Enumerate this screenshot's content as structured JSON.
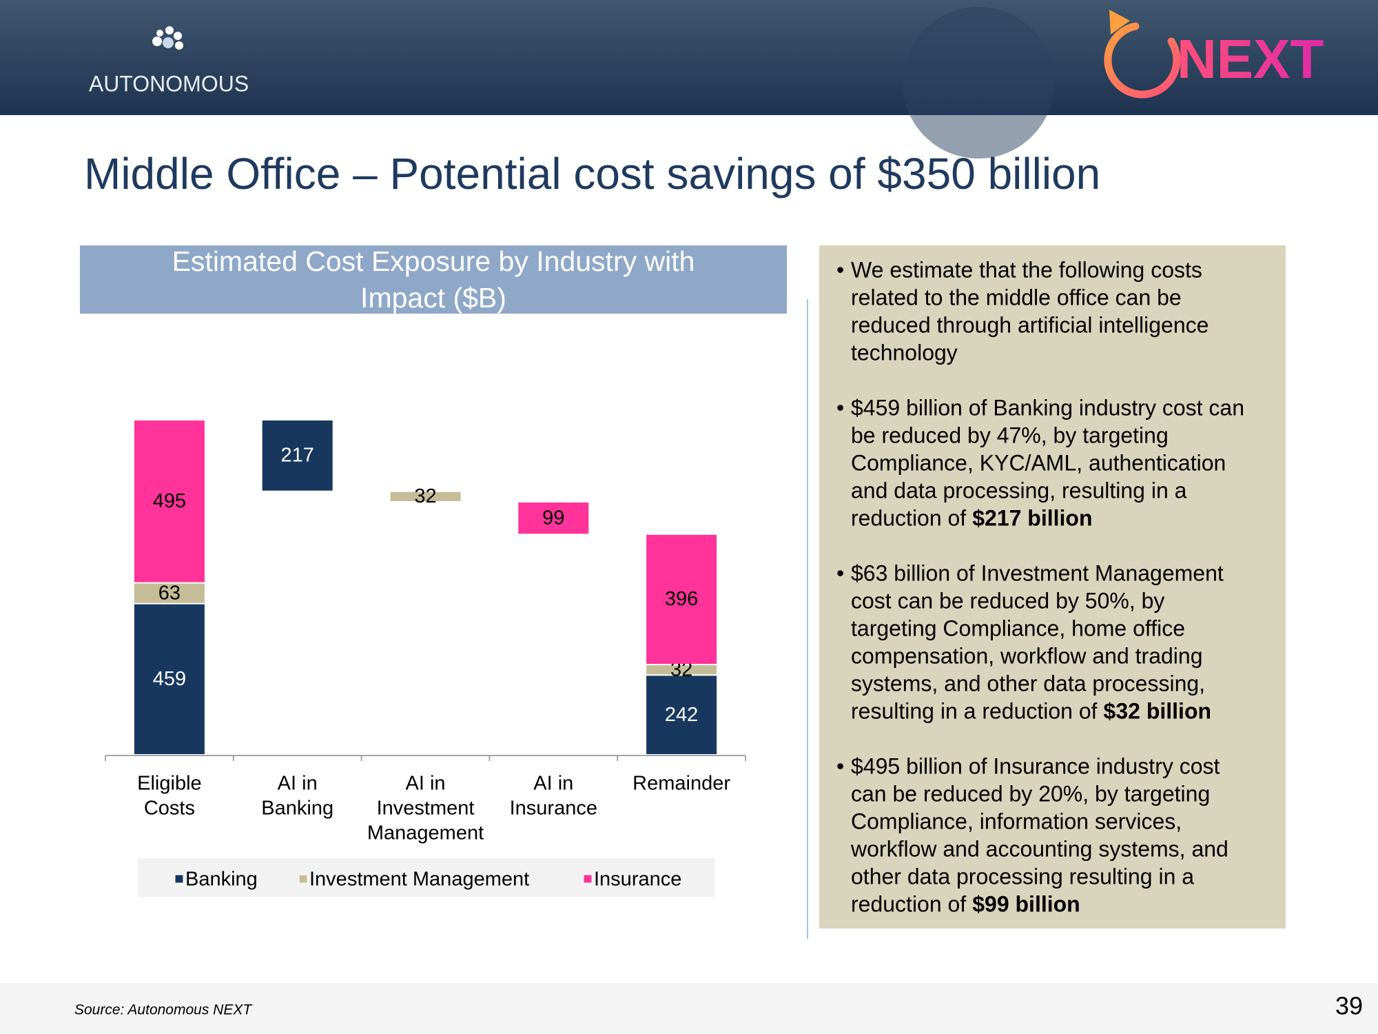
{
  "header": {
    "left_logo": "AUTONOMOUS",
    "right_logo": "NEXT"
  },
  "title": "Middle Office – Potential cost savings of $350 billion",
  "chart_data": {
    "type": "waterfall",
    "title": "Estimated Cost Exposure by Industry with Impact ($B)",
    "categories": [
      [
        "Eligible",
        "Costs"
      ],
      [
        "AI in",
        "Banking"
      ],
      [
        "AI in",
        "Investment",
        "Management"
      ],
      [
        "AI in",
        "Insurance"
      ],
      [
        "Remainder"
      ]
    ],
    "series": [
      {
        "name": "Banking",
        "color": "#17375e",
        "values": [
          459,
          217,
          null,
          null,
          242
        ]
      },
      {
        "name": "Investment Management",
        "color": "#c4bd97",
        "values": [
          63,
          null,
          32,
          null,
          32
        ]
      },
      {
        "name": "Insurance",
        "color": "#ff3399",
        "values": [
          495,
          null,
          null,
          99,
          396
        ]
      }
    ]
  },
  "bullets": [
    {
      "lines": [
        "We estimate that the following costs",
        "related to the middle office can be",
        "reduced through artificial intelligence",
        "technology"
      ]
    },
    {
      "lines": [
        "$459 billion of Banking industry cost can",
        "be reduced by 47%, by targeting",
        "Compliance, KYC/AML, authentication",
        "and data processing, resulting in a",
        "reduction of"
      ],
      "bold": "$217 billion"
    },
    {
      "lines": [
        "$63 billion of Investment Management",
        "cost can be reduced by 50%, by",
        "targeting Compliance, home office",
        "compensation, workflow and trading",
        "systems, and other data processing,",
        "resulting in a reduction of"
      ],
      "bold": "$32 billion"
    },
    {
      "lines": [
        "$495 billion of Insurance industry cost",
        "can be reduced by 20%, by targeting",
        "Compliance, information services,",
        "workflow and accounting systems, and",
        "other data processing resulting in a",
        "reduction of"
      ],
      "bold": "$99 billion"
    }
  ],
  "footer": {
    "source": "Source: Autonomous NEXT",
    "page": "39"
  }
}
